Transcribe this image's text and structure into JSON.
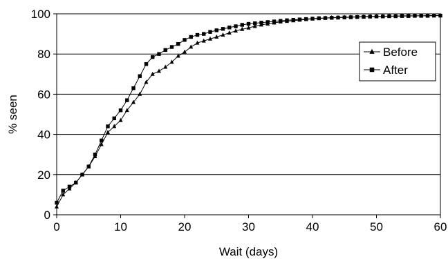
{
  "chart_data": {
    "type": "line",
    "title": "",
    "xlabel": "Wait (days)",
    "ylabel": "% seen",
    "xlim": [
      0,
      60
    ],
    "ylim": [
      0,
      100
    ],
    "x_ticks": [
      "0",
      "10",
      "20",
      "30",
      "40",
      "50",
      "60"
    ],
    "y_ticks": [
      "0",
      "20",
      "40",
      "60",
      "80",
      "100"
    ],
    "grid": "horizontal",
    "legend_position": "right",
    "series": [
      {
        "name": "Before",
        "marker": "triangle",
        "color": "#000000",
        "x": [
          0,
          1,
          2,
          3,
          4,
          5,
          6,
          7,
          8,
          9,
          10,
          11,
          12,
          13,
          14,
          15,
          16,
          17,
          18,
          19,
          20,
          21,
          22,
          23,
          24,
          25,
          26,
          27,
          28,
          29,
          30,
          31,
          32,
          33,
          34,
          35,
          36,
          37,
          38,
          39,
          40,
          41,
          42,
          43,
          44,
          45,
          46,
          47,
          48,
          49,
          50,
          51,
          52,
          53,
          54,
          55,
          56,
          57,
          58,
          59,
          60
        ],
        "y": [
          4,
          10,
          13,
          16,
          20,
          24,
          29,
          35,
          41,
          44,
          47,
          52,
          56,
          60,
          66,
          70,
          71.5,
          73.5,
          76,
          79,
          81,
          83.5,
          85.5,
          86.5,
          87.5,
          88.5,
          89.5,
          90.5,
          91.5,
          92.3,
          93,
          93.8,
          94.5,
          95,
          95.5,
          96,
          96.3,
          96.6,
          96.9,
          97.2,
          97.5,
          97.7,
          97.9,
          98.1,
          98.2,
          98.3,
          98.4,
          98.5,
          98.6,
          98.7,
          98.8,
          98.8,
          98.9,
          98.9,
          99,
          99,
          99,
          99,
          99.1,
          99.1,
          99.2
        ]
      },
      {
        "name": "After",
        "marker": "square",
        "color": "#000000",
        "x": [
          0,
          1,
          2,
          3,
          4,
          5,
          6,
          7,
          8,
          9,
          10,
          11,
          12,
          13,
          14,
          15,
          16,
          17,
          18,
          19,
          20,
          21,
          22,
          23,
          24,
          25,
          26,
          27,
          28,
          29,
          30,
          31,
          32,
          33,
          34,
          35,
          36,
          37,
          38,
          39,
          40,
          41,
          42,
          43,
          44,
          45,
          46,
          47,
          48,
          49,
          50,
          51,
          52,
          53,
          54,
          55,
          56,
          57,
          58,
          59,
          60
        ],
        "y": [
          6,
          12,
          14,
          16,
          20,
          24,
          30,
          37,
          44,
          48,
          52,
          57,
          63,
          69,
          75,
          78.5,
          80,
          82,
          83.5,
          85,
          87,
          88.5,
          89.5,
          90,
          91,
          91.8,
          92.5,
          93.2,
          93.8,
          94.5,
          95,
          95.3,
          95.6,
          95.9,
          96.2,
          96.5,
          96.8,
          97,
          97.2,
          97.4,
          97.6,
          97.8,
          97.9,
          98,
          98.1,
          98.2,
          98.3,
          98.4,
          98.5,
          98.6,
          98.7,
          98.7,
          98.8,
          98.8,
          98.9,
          98.9,
          99,
          99,
          99,
          99.1,
          99.1
        ]
      }
    ]
  }
}
